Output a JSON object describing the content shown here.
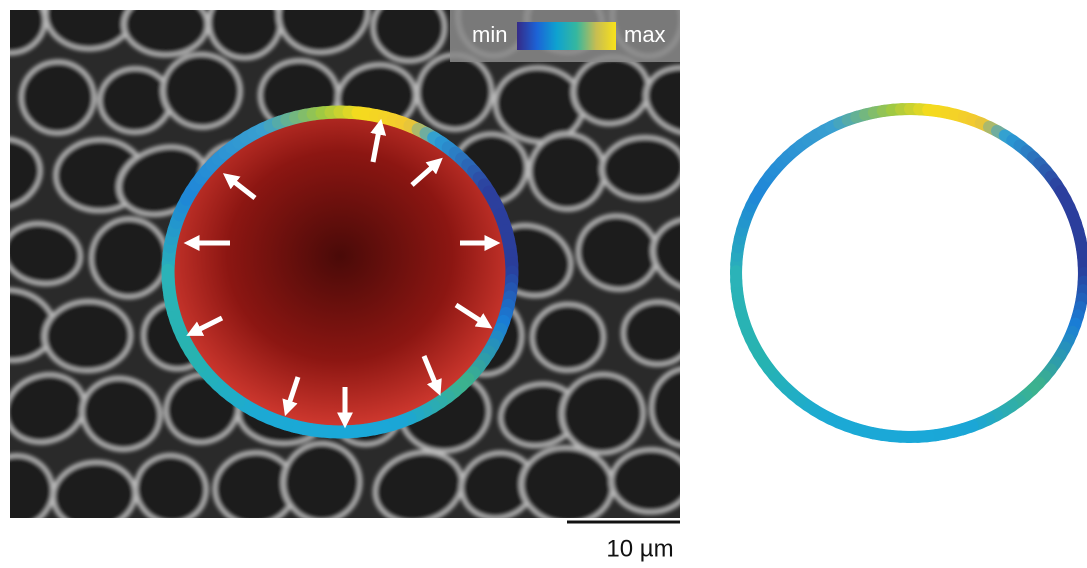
{
  "colorbar": {
    "min_label": "min",
    "max_label": "max"
  },
  "scale_bar": {
    "label": "10 µm"
  }
}
